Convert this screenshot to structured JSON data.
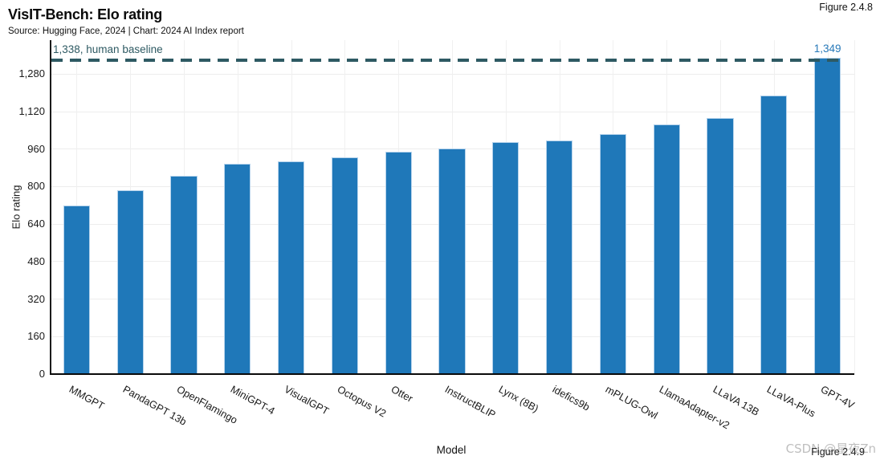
{
  "header": {
    "title": "VisIT-Bench: Elo rating",
    "subtitle": "Source: Hugging Face, 2024 | Chart: 2024 AI Index report",
    "figure_top": "Figure 2.4.8"
  },
  "footer": {
    "xlabel": "Model",
    "figure_bottom": "Figure 2.4.9",
    "watermark": "CSDN @星夜Zn"
  },
  "chart_data": {
    "type": "bar",
    "title": "VisIT-Bench: Elo rating",
    "xlabel": "Model",
    "ylabel": "Elo rating",
    "categories": [
      "MMGPT",
      "PandaGPT 13b",
      "OpenFlamingo",
      "MiniGPT-4",
      "VisualGPT",
      "Octopus V2",
      "Otter",
      "InstructBLIP",
      "Lynx (8B)",
      "idefics9b",
      "mPLUG-Owl",
      "LlamaAdapter-v2",
      "LLaVA 13B",
      "LLaVA-Plus",
      "GPT-4V"
    ],
    "values": [
      721,
      786,
      845,
      898,
      909,
      925,
      948,
      961,
      989,
      996,
      1025,
      1066,
      1092,
      1190,
      1349
    ],
    "value_label": {
      "index": 14,
      "text": "1,349"
    },
    "baseline": {
      "value": 1338,
      "label": "1,338, human baseline"
    },
    "yticks": [
      0,
      160,
      320,
      480,
      640,
      800,
      960,
      1120,
      1280
    ],
    "ytick_labels": [
      "0",
      "160",
      "320",
      "480",
      "640",
      "800",
      "960",
      "1,120",
      "1,280"
    ],
    "ylim": [
      0,
      1425
    ],
    "grid": true,
    "legend": "none",
    "colors": {
      "bar": "#1f78b9",
      "baseline": "#2e5a63",
      "value_label": "#2779b9",
      "grid_h": "#ededed",
      "grid_v": "#f0f0f0",
      "axis": "#1a1a1a",
      "watermark": "#c9c9c9"
    }
  }
}
